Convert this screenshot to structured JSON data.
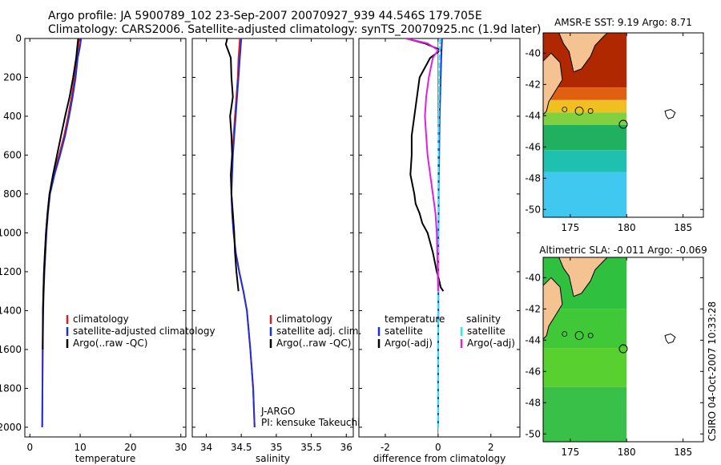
{
  "header": {
    "line1": "Argo profile: JA 5900789_102 23-Sep-2007 20070927_939 44.546S 179.705E",
    "line2": "Climatology: CARS2006. Satellite-adjusted climatology: synTS_20070925.nc (1.9d later)"
  },
  "colors": {
    "climatology": "#d82020",
    "satellite": "#1f2fe0",
    "argo": "#000000",
    "satellite_sal": "#30e8f0",
    "argo_sal": "#e020e0",
    "land": "#f5c392",
    "coast": "#000000"
  },
  "legends": {
    "temp": [
      "climatology",
      "satellite-adjusted climatology",
      "Argo(..raw -QC)"
    ],
    "sal": [
      "climatology",
      "satellite adj. clim.",
      "Argo(..raw -QC)"
    ],
    "diff_headers": [
      "temperature",
      "salinity"
    ],
    "diff_left": [
      "satellite",
      "Argo(-adj)"
    ],
    "diff_right": [
      "satellite",
      "Argo(-adj)"
    ]
  },
  "annotation": {
    "program": "J-ARGO",
    "pi": "PI: kensuke Takeuchi"
  },
  "side_label": "CSIRO 04-Oct-2007 10:33:28",
  "chart_data": [
    {
      "type": "line",
      "title": "",
      "xlabel": "temperature",
      "ylabel": "",
      "xlim": [
        -1,
        31
      ],
      "ylim": [
        2050,
        0
      ],
      "x_ticks": [
        0,
        10,
        20,
        30
      ],
      "y_ticks": [
        0,
        200,
        400,
        600,
        800,
        1000,
        1200,
        1400,
        1600,
        1800,
        2000
      ],
      "series": [
        {
          "name": "climatology",
          "color_key": "climatology",
          "x": [
            9.8,
            9.6,
            9.3,
            8.9,
            8.3,
            7.6,
            6.8,
            5.8,
            4.7,
            3.9,
            3.5,
            3.2,
            3.0,
            2.8,
            2.7,
            2.6,
            2.55,
            2.5,
            2.45
          ],
          "y": [
            0,
            50,
            100,
            200,
            300,
            400,
            500,
            600,
            700,
            800,
            900,
            1000,
            1100,
            1200,
            1300,
            1400,
            1600,
            1800,
            2000
          ]
        },
        {
          "name": "satellite-adjusted climatology",
          "color_key": "satellite",
          "x": [
            10.2,
            9.9,
            9.5,
            9.1,
            8.5,
            7.8,
            7.0,
            6.0,
            4.9,
            4.0,
            3.6,
            3.3,
            3.1,
            2.9,
            2.75,
            2.65,
            2.55,
            2.5,
            2.45
          ],
          "y": [
            0,
            50,
            100,
            200,
            300,
            400,
            500,
            600,
            700,
            800,
            900,
            1000,
            1100,
            1200,
            1300,
            1400,
            1600,
            1800,
            2000
          ]
        },
        {
          "name": "Argo(..raw -QC)",
          "color_key": "argo",
          "x": [
            9.6,
            9.4,
            9.2,
            8.6,
            7.9,
            7.0,
            6.2,
            5.4,
            4.6,
            3.9,
            3.5,
            3.2,
            3.0,
            2.8,
            2.7,
            2.6,
            2.55
          ],
          "y": [
            0,
            50,
            100,
            200,
            300,
            400,
            500,
            600,
            700,
            800,
            900,
            1000,
            1100,
            1200,
            1300,
            1400,
            1600
          ]
        }
      ]
    },
    {
      "type": "line",
      "title": "",
      "xlabel": "salinity",
      "ylabel": "",
      "xlim": [
        33.8,
        36.1
      ],
      "ylim": [
        2050,
        0
      ],
      "x_ticks": [
        34,
        34.5,
        35,
        35.5,
        36
      ],
      "series": [
        {
          "name": "climatology",
          "color_key": "climatology",
          "x": [
            34.48,
            34.47,
            34.46,
            34.45,
            34.43,
            34.41,
            34.39,
            34.37,
            34.36,
            34.36,
            34.37,
            34.39,
            34.42,
            34.47,
            34.53,
            34.58,
            34.63,
            34.67,
            34.69
          ],
          "y": [
            0,
            50,
            100,
            200,
            300,
            400,
            500,
            600,
            700,
            800,
            900,
            1000,
            1100,
            1200,
            1300,
            1400,
            1600,
            1800,
            2000
          ]
        },
        {
          "name": "satellite adj. clim.",
          "color_key": "satellite",
          "x": [
            34.5,
            34.49,
            34.48,
            34.46,
            34.44,
            34.42,
            34.4,
            34.38,
            34.37,
            34.36,
            34.37,
            34.39,
            34.42,
            34.47,
            34.53,
            34.58,
            34.63,
            34.67,
            34.69
          ],
          "y": [
            0,
            50,
            100,
            200,
            300,
            400,
            500,
            600,
            700,
            800,
            900,
            1000,
            1100,
            1200,
            1300,
            1400,
            1600,
            1800,
            2000
          ]
        },
        {
          "name": "Argo(..raw -QC)",
          "color_key": "argo",
          "x": [
            34.3,
            34.28,
            34.31,
            34.35,
            34.36,
            34.38,
            34.34,
            34.36,
            34.37,
            34.35,
            34.36,
            34.38,
            34.4,
            34.41,
            34.43,
            34.46
          ],
          "y": [
            0,
            30,
            60,
            100,
            200,
            300,
            400,
            500,
            600,
            700,
            800,
            900,
            1000,
            1100,
            1200,
            1300
          ]
        }
      ]
    },
    {
      "type": "line",
      "title": "",
      "xlabel": "difference from climatology",
      "ylabel": "",
      "xlim": [
        -3,
        3.1
      ],
      "ylim": [
        2050,
        0
      ],
      "x_ticks": [
        -2,
        0,
        2
      ],
      "series": [
        {
          "name": "temperature satellite",
          "color_key": "satellite",
          "x": [
            0.15,
            0.12,
            0.1,
            0.08,
            0.06,
            0.05,
            0.04,
            0.03,
            0.02,
            0.02,
            0.01,
            0.01,
            0.01,
            0.0,
            0.0,
            0.0,
            0.0
          ],
          "y": [
            0,
            100,
            200,
            300,
            400,
            500,
            600,
            700,
            800,
            900,
            1000,
            1200,
            1400,
            1600,
            1800,
            1900,
            2000
          ]
        },
        {
          "name": "temperature Argo(-adj)",
          "color_key": "argo",
          "x": [
            -1.2,
            -0.5,
            0.1,
            -0.3,
            -0.5,
            -0.7,
            -0.8,
            -0.9,
            -1.0,
            -1.0,
            -1.05,
            -0.9,
            -0.85,
            -0.7,
            -0.6,
            -0.4,
            -0.2,
            -0.05,
            0.05,
            0.1,
            0.2
          ],
          "y": [
            0,
            25,
            60,
            100,
            150,
            200,
            300,
            400,
            500,
            600,
            700,
            800,
            850,
            900,
            950,
            1000,
            1100,
            1200,
            1250,
            1280,
            1300
          ]
        },
        {
          "name": "salinity satellite",
          "color_key": "satellite_sal",
          "x": [
            0.08,
            0.06,
            0.05,
            0.04,
            0.03,
            0.02,
            0.02,
            0.01,
            0.01,
            0.0,
            0.0,
            0.0,
            0.0,
            0.0
          ],
          "y": [
            0,
            100,
            200,
            300,
            400,
            500,
            600,
            800,
            1000,
            1200,
            1400,
            1600,
            1800,
            2000
          ]
        },
        {
          "name": "salinity Argo(-adj)",
          "color_key": "argo_sal",
          "x": [
            -1.2,
            -0.4,
            0.0,
            -0.2,
            -0.35,
            -0.45,
            -0.5,
            -0.45,
            -0.4,
            -0.3,
            -0.2,
            -0.1,
            -0.05,
            0.0
          ],
          "y": [
            0,
            25,
            60,
            100,
            200,
            300,
            400,
            500,
            600,
            700,
            800,
            900,
            1000,
            1300
          ]
        }
      ]
    },
    {
      "type": "heatmap",
      "title": "AMSR-E SST: 9.19 Argo: 8.71",
      "xlim": [
        172.6,
        186.8
      ],
      "ylim": [
        -50.5,
        -38.7
      ],
      "x_ticks": [
        175,
        180,
        185
      ],
      "y_ticks": [
        -40,
        -42,
        -44,
        -46,
        -48,
        -50
      ],
      "argo_position": [
        179.7,
        -44.55
      ],
      "data_extent_lon": [
        172.6,
        180.0
      ],
      "bands": [
        {
          "lat_top": -38.7,
          "lat_bottom": -42.2,
          "color": "#b02800"
        },
        {
          "lat_top": -42.2,
          "lat_bottom": -43.0,
          "color": "#e06010"
        },
        {
          "lat_top": -43.0,
          "lat_bottom": -43.8,
          "color": "#f0c020"
        },
        {
          "lat_top": -43.8,
          "lat_bottom": -44.6,
          "color": "#80d040"
        },
        {
          "lat_top": -44.6,
          "lat_bottom": -46.2,
          "color": "#20b060"
        },
        {
          "lat_top": -46.2,
          "lat_bottom": -47.6,
          "color": "#20c0b0"
        },
        {
          "lat_top": -47.6,
          "lat_bottom": -50.5,
          "color": "#40c8f0"
        }
      ]
    },
    {
      "type": "heatmap",
      "title": "Altimetric SLA: -0.011 Argo: -0.069",
      "xlim": [
        172.6,
        186.8
      ],
      "ylim": [
        -50.5,
        -38.7
      ],
      "x_ticks": [
        175,
        180,
        185
      ],
      "y_ticks": [
        -40,
        -42,
        -44,
        -46,
        -48,
        -50
      ],
      "argo_position": [
        179.7,
        -44.55
      ],
      "data_extent_lon": [
        172.6,
        180.0
      ],
      "bands": [
        {
          "lat_top": -38.7,
          "lat_bottom": -42.0,
          "color": "#30c040"
        },
        {
          "lat_top": -42.0,
          "lat_bottom": -44.5,
          "color": "#40c838"
        },
        {
          "lat_top": -44.5,
          "lat_bottom": -47.0,
          "color": "#58d030"
        },
        {
          "lat_top": -47.0,
          "lat_bottom": -50.5,
          "color": "#38c048"
        }
      ]
    }
  ]
}
